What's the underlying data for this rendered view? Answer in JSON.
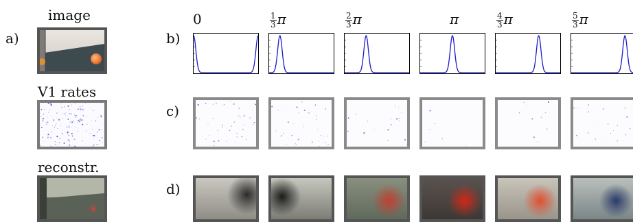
{
  "rows": {
    "image_label": "image",
    "rates_label": "V1 rates",
    "recon_label": "reconstr."
  },
  "panels": {
    "a": "a)",
    "b": "b)",
    "c": "c)",
    "d": "d)"
  },
  "columns": [
    {
      "plain": "0"
    },
    {
      "num": "1",
      "den": "3",
      "sym": "π"
    },
    {
      "num": "2",
      "den": "3",
      "sym": "π"
    },
    {
      "plain": "π"
    },
    {
      "num": "4",
      "den": "3",
      "sym": "π"
    },
    {
      "num": "5",
      "den": "3",
      "sym": "π"
    }
  ],
  "chart_data": {
    "type": "line",
    "title": "",
    "xlabel": "",
    "ylabel": "",
    "series": [
      {
        "peaks": [
          0.0,
          1.0
        ]
      },
      {
        "peaks": [
          0.167
        ]
      },
      {
        "peaks": [
          0.333
        ]
      },
      {
        "peaks": [
          0.5
        ]
      },
      {
        "peaks": [
          0.667
        ]
      },
      {
        "peaks": [
          0.833
        ]
      }
    ],
    "line_color": "#1a1acc"
  },
  "colors": {
    "frame_gray": "#7a7a7a",
    "curve": "#1a1acc",
    "rate_dot": "#3a3ad0"
  }
}
